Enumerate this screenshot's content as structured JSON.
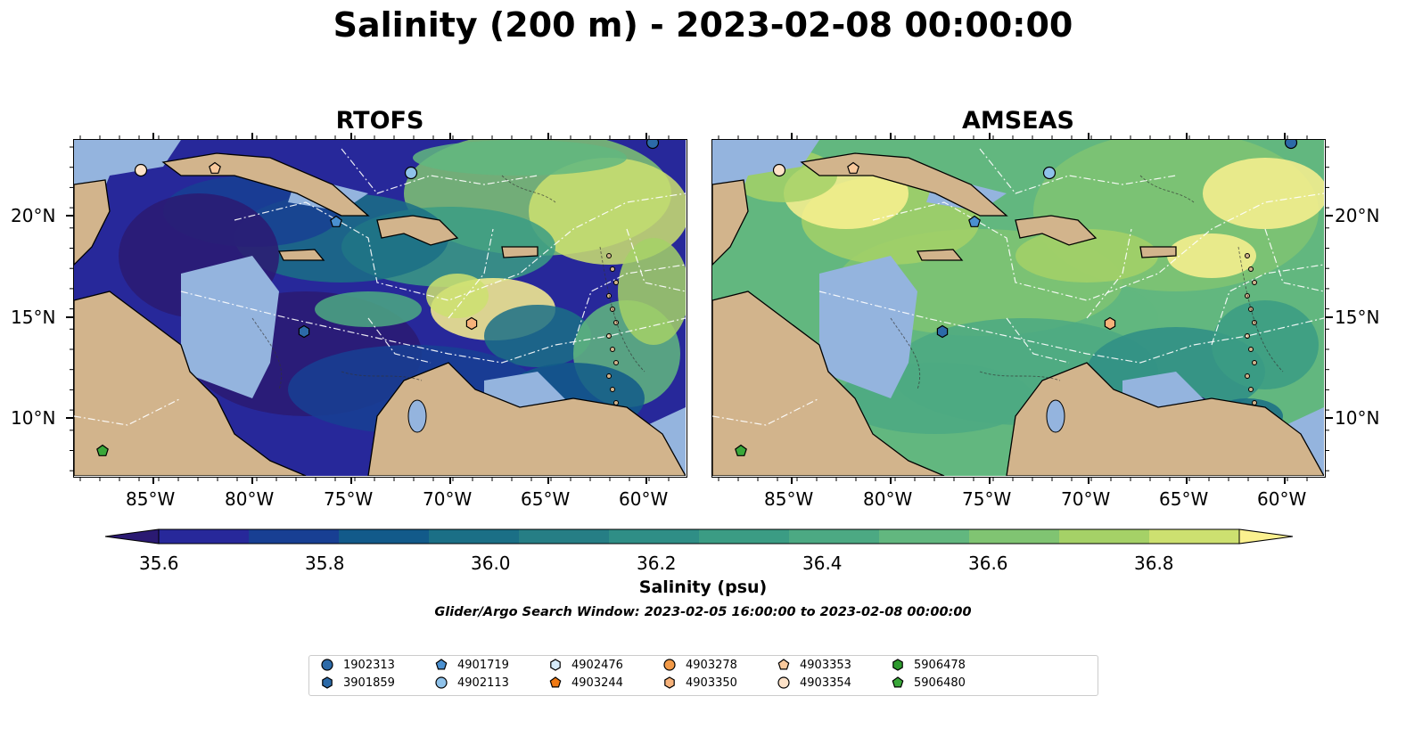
{
  "figure": {
    "title": "Salinity (200 m) - 2023-02-08 00:00:00",
    "panels": [
      {
        "title": "RTOFS"
      },
      {
        "title": "AMSEAS"
      }
    ],
    "lon_ticks": [
      "85°W",
      "80°W",
      "75°W",
      "70°W",
      "65°W",
      "60°W"
    ],
    "lat_ticks": [
      "20°N",
      "15°N",
      "10°N"
    ],
    "colorbar": {
      "label": "Salinity (psu)",
      "ticks": [
        "35.6",
        "35.8",
        "36.0",
        "36.2",
        "36.4",
        "36.6",
        "36.8"
      ],
      "range": [
        35.6,
        36.9
      ],
      "colors": [
        "#2b1a72",
        "#27289a",
        "#183f93",
        "#125a8a",
        "#1b6f86",
        "#267e85",
        "#2f8e86",
        "#3b9c84",
        "#4ca983",
        "#62b77f",
        "#80c472",
        "#a5d167",
        "#cde070",
        "#fbf18f"
      ],
      "extend": "both"
    },
    "search_window": "Glider/Argo Search Window: 2023-02-05 16:00:00 to 2023-02-08 00:00:00",
    "colors": {
      "land": "#d2b48c",
      "shallow_water": "#94b4de",
      "contour": "#ffffff"
    }
  },
  "legend": [
    {
      "id": "1902313",
      "marker": "circle",
      "color": "#2c6aa8"
    },
    {
      "id": "3901859",
      "marker": "hexagon",
      "color": "#2c6aa8"
    },
    {
      "id": "4901719",
      "marker": "pentagon",
      "color": "#4a90d0"
    },
    {
      "id": "4902113",
      "marker": "circle",
      "color": "#8fc2ea"
    },
    {
      "id": "4902476",
      "marker": "hexagon",
      "color": "#d6ecfa"
    },
    {
      "id": "4903244",
      "marker": "pentagon",
      "color": "#f07a14"
    },
    {
      "id": "4903278",
      "marker": "circle",
      "color": "#f29a48"
    },
    {
      "id": "4903350",
      "marker": "hexagon",
      "color": "#f7b27a"
    },
    {
      "id": "4903353",
      "marker": "pentagon",
      "color": "#f9c99c"
    },
    {
      "id": "4903354",
      "marker": "circle",
      "color": "#fde2c8"
    },
    {
      "id": "5906478",
      "marker": "hexagon",
      "color": "#2e9a2e"
    },
    {
      "id": "5906480",
      "marker": "pentagon",
      "color": "#3aa83a"
    }
  ]
}
